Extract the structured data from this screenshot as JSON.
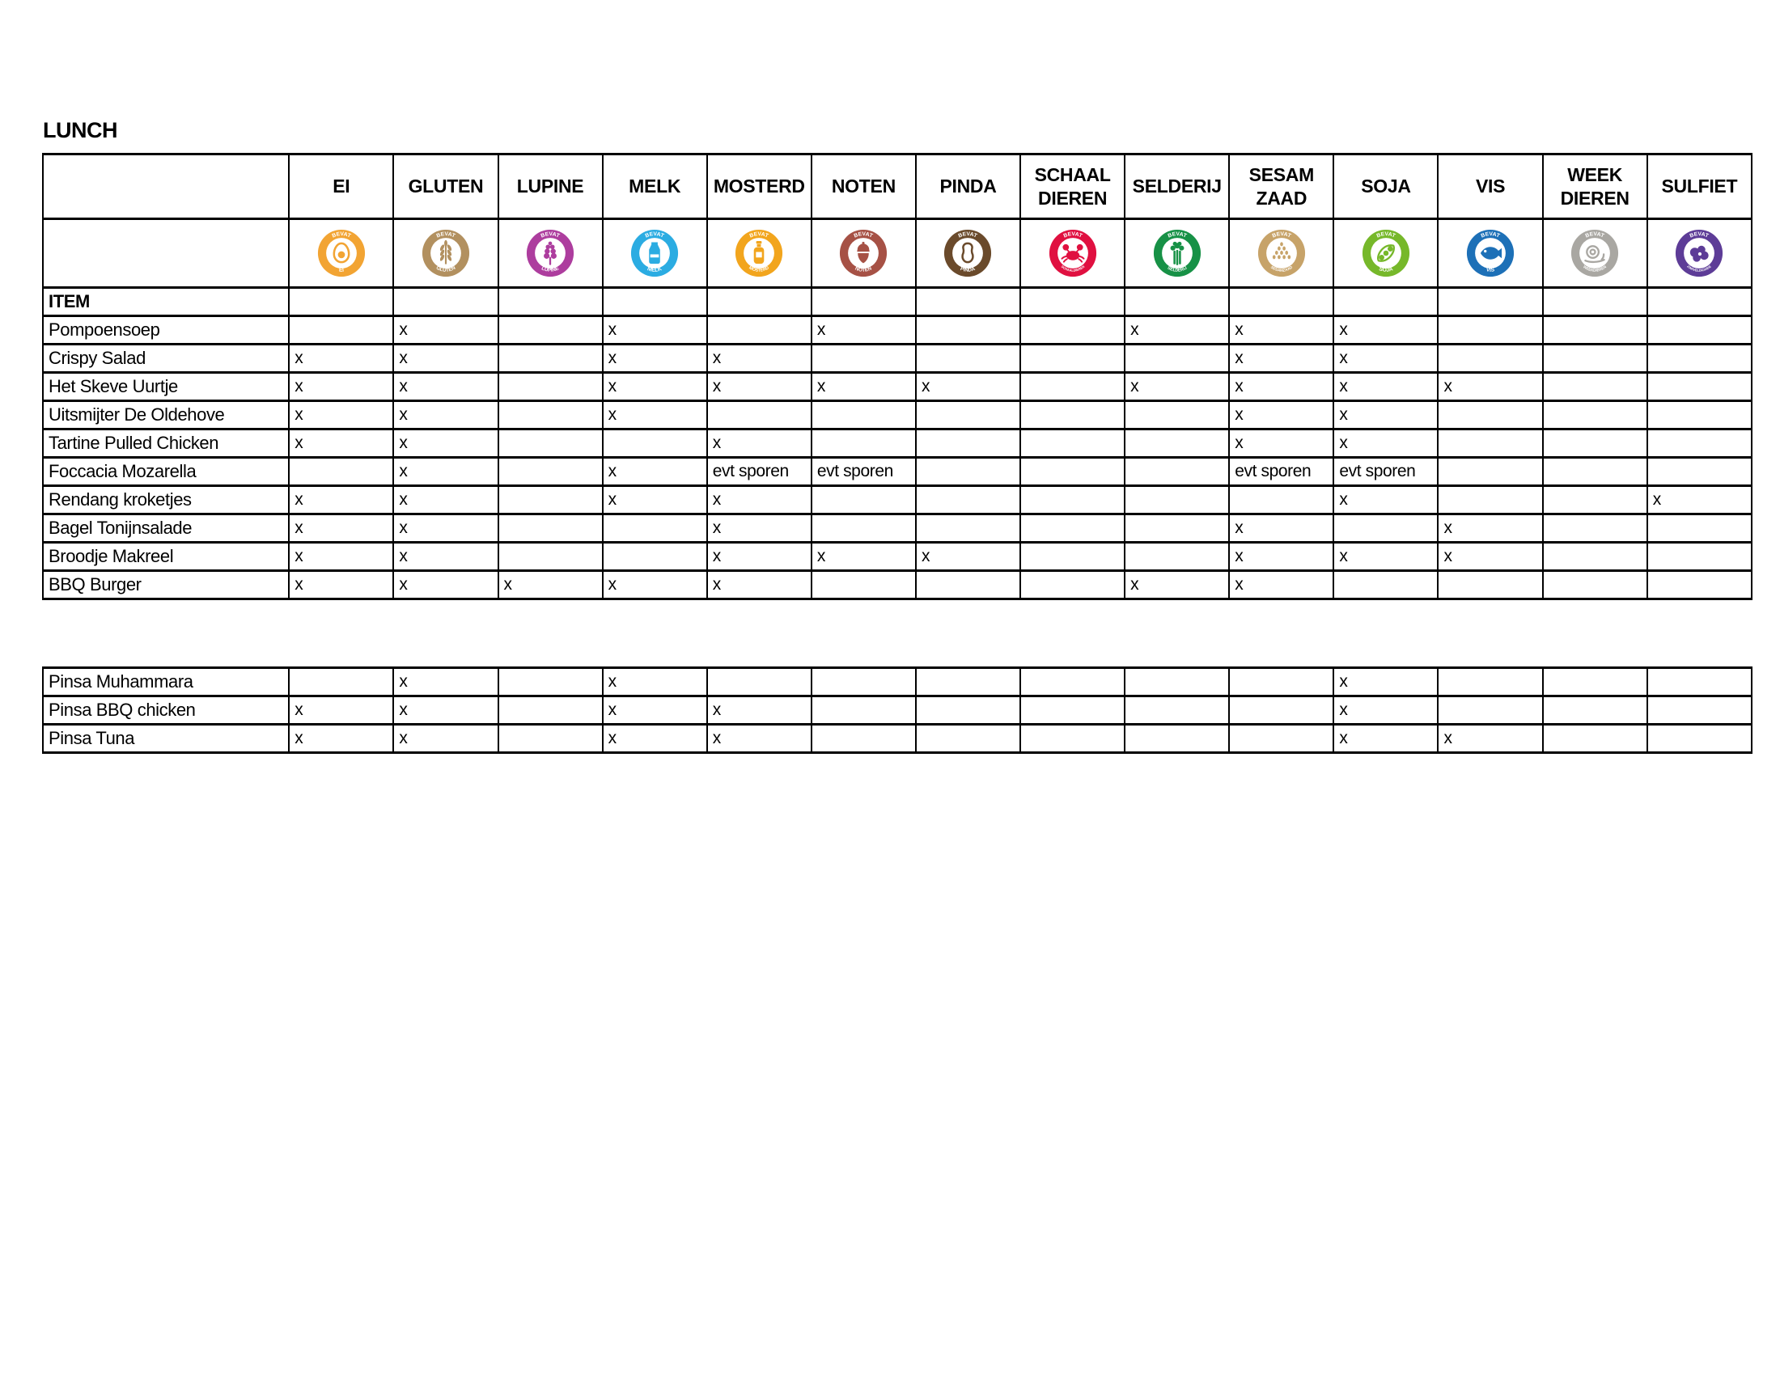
{
  "title": "LUNCH",
  "table": {
    "item_header": "ITEM",
    "columns": [
      {
        "key": "ei",
        "label": "EI",
        "icon": "ei-icon",
        "color": "#F2A433",
        "ring_top": "BEVAT",
        "ring_label": "EI"
      },
      {
        "key": "gluten",
        "label": "GLUTEN",
        "icon": "gluten-icon",
        "color": "#B2905F",
        "ring_top": "BEVAT",
        "ring_label": "GLUTEN"
      },
      {
        "key": "lupine",
        "label": "LUPINE",
        "icon": "lupine-icon",
        "color": "#AD3D9E",
        "ring_top": "BEVAT",
        "ring_label": "LUPINE"
      },
      {
        "key": "melk",
        "label": "MELK",
        "icon": "melk-icon",
        "color": "#2BACE2",
        "ring_top": "BEVAT",
        "ring_label": "MELK"
      },
      {
        "key": "mosterd",
        "label": "MOSTERD",
        "icon": "mosterd-icon",
        "color": "#F2A51D",
        "ring_top": "BEVAT",
        "ring_label": "MOSTERD"
      },
      {
        "key": "noten",
        "label": "NOTEN",
        "icon": "noten-icon",
        "color": "#A65145",
        "ring_top": "BEVAT",
        "ring_label": "NOTEN"
      },
      {
        "key": "pinda",
        "label": "PINDA",
        "icon": "pinda-icon",
        "color": "#6A4A2B",
        "ring_top": "BEVAT",
        "ring_label": "PINDA"
      },
      {
        "key": "schaaldieren",
        "label": "SCHAAL\nDIEREN",
        "icon": "schaaldieren-icon",
        "color": "#E01040",
        "ring_top": "BEVAT",
        "ring_label": "SCHAALDIEREN"
      },
      {
        "key": "selderij",
        "label": "SELDERIJ",
        "icon": "selderij-icon",
        "color": "#179146",
        "ring_top": "BEVAT",
        "ring_label": "SELDERIJ"
      },
      {
        "key": "sesamzaad",
        "label": "SESAM\nZAAD",
        "icon": "sesamzaad-icon",
        "color": "#C7A369",
        "ring_top": "BEVAT",
        "ring_label": "SESAMZAAD"
      },
      {
        "key": "soja",
        "label": "SOJA",
        "icon": "soja-icon",
        "color": "#76B82A",
        "ring_top": "BEVAT",
        "ring_label": "SOJA"
      },
      {
        "key": "vis",
        "label": "VIS",
        "icon": "vis-icon",
        "color": "#1D70B7",
        "ring_top": "BEVAT",
        "ring_label": "VIS"
      },
      {
        "key": "weekdieren",
        "label": "WEEK\nDIEREN",
        "icon": "weekdieren-icon",
        "color": "#A9A7A2",
        "ring_top": "BEVAT",
        "ring_label": "WEEKDIEREN"
      },
      {
        "key": "sulfiet",
        "label": "SULFIET",
        "icon": "sulfiet-icon",
        "color": "#5D3C97",
        "ring_top": "BEVAT",
        "ring_label": "ZWAVELDIOXIDE"
      }
    ],
    "rows": [
      {
        "name": "Pompoensoep",
        "values": [
          "",
          "x",
          "",
          "x",
          "",
          "x",
          "",
          "",
          "x",
          "x",
          "x",
          "",
          "",
          ""
        ]
      },
      {
        "name": "Crispy Salad",
        "values": [
          "x",
          "x",
          "",
          "x",
          "x",
          "",
          "",
          "",
          "",
          "x",
          "x",
          "",
          "",
          ""
        ]
      },
      {
        "name": "Het Skeve Uurtje",
        "values": [
          "x",
          "x",
          "",
          "x",
          "x",
          "x",
          "x",
          "",
          "x",
          "x",
          "x",
          "x",
          "",
          ""
        ]
      },
      {
        "name": "Uitsmijter De Oldehove",
        "values": [
          "x",
          "x",
          "",
          "x",
          "",
          "",
          "",
          "",
          "",
          "x",
          "x",
          "",
          "",
          ""
        ]
      },
      {
        "name": "Tartine Pulled Chicken",
        "values": [
          "x",
          "x",
          "",
          "",
          "x",
          "",
          "",
          "",
          "",
          "x",
          "x",
          "",
          "",
          ""
        ]
      },
      {
        "name": "Foccacia Mozarella",
        "values": [
          "",
          "x",
          "",
          "x",
          "evt sporen",
          "evt sporen",
          "",
          "",
          "",
          "evt sporen",
          "evt sporen",
          "",
          "",
          ""
        ]
      },
      {
        "name": "Rendang kroketjes",
        "values": [
          "x",
          "x",
          "",
          "x",
          "x",
          "",
          "",
          "",
          "",
          "",
          "x",
          "",
          "",
          "x"
        ]
      },
      {
        "name": "Bagel Tonijnsalade",
        "values": [
          "x",
          "x",
          "",
          "",
          "x",
          "",
          "",
          "",
          "",
          "x",
          "",
          "x",
          "",
          ""
        ]
      },
      {
        "name": "Broodje Makreel",
        "values": [
          "x",
          "x",
          "",
          "",
          "x",
          "x",
          "x",
          "",
          "",
          "x",
          "x",
          "x",
          "",
          ""
        ]
      },
      {
        "name": "BBQ Burger",
        "values": [
          "x",
          "x",
          "x",
          "x",
          "x",
          "",
          "",
          "",
          "x",
          "x",
          "",
          "",
          "",
          ""
        ]
      }
    ],
    "rows2": [
      {
        "name": "Pinsa Muhammara",
        "values": [
          "",
          "x",
          "",
          "x",
          "",
          "",
          "",
          "",
          "",
          "",
          "x",
          "",
          "",
          ""
        ]
      },
      {
        "name": "Pinsa BBQ chicken",
        "values": [
          "x",
          "x",
          "",
          "x",
          "x",
          "",
          "",
          "",
          "",
          "",
          "x",
          "",
          "",
          ""
        ]
      },
      {
        "name": "Pinsa Tuna",
        "values": [
          "x",
          "x",
          "",
          "x",
          "x",
          "",
          "",
          "",
          "",
          "",
          "x",
          "x",
          "",
          ""
        ]
      }
    ]
  }
}
